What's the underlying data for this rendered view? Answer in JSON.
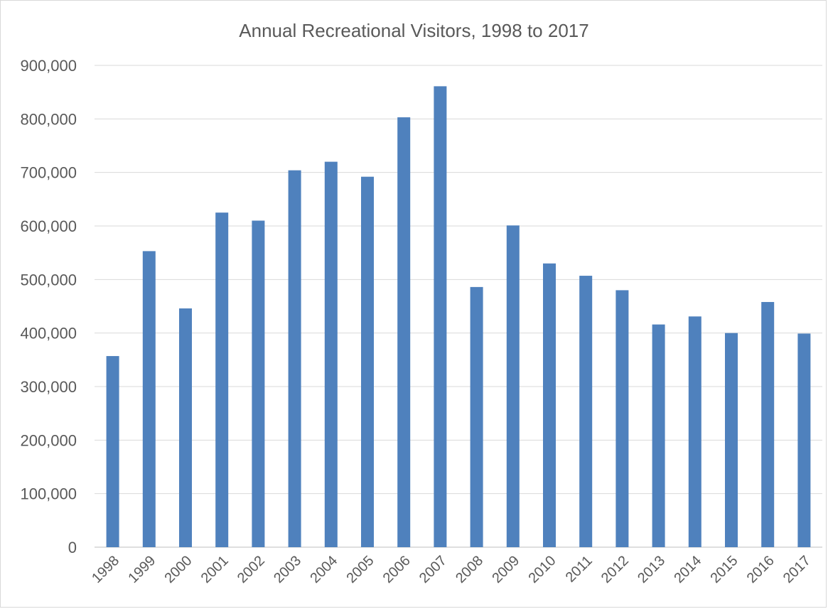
{
  "chart_data": {
    "type": "bar",
    "title": "Annual Recreational Visitors, 1998 to 2017",
    "xlabel": "",
    "ylabel": "",
    "categories": [
      "1998",
      "1999",
      "2000",
      "2001",
      "2002",
      "2003",
      "2004",
      "2005",
      "2006",
      "2007",
      "2008",
      "2009",
      "2010",
      "2011",
      "2012",
      "2013",
      "2014",
      "2015",
      "2016",
      "2017"
    ],
    "values": [
      357000,
      553000,
      446000,
      625000,
      610000,
      704000,
      720000,
      692000,
      803000,
      861000,
      486000,
      601000,
      530000,
      507000,
      480000,
      416000,
      431000,
      400000,
      458000,
      399000
    ],
    "ylim": [
      0,
      900000
    ],
    "yticks": [
      0,
      100000,
      200000,
      300000,
      400000,
      500000,
      600000,
      700000,
      800000,
      900000
    ],
    "ytick_labels": [
      "0",
      "100,000",
      "200,000",
      "300,000",
      "400,000",
      "500,000",
      "600,000",
      "700,000",
      "800,000",
      "900,000"
    ],
    "grid": true,
    "legend": "none",
    "bar_color": "#4f81bd",
    "grid_color": "#d9d9d9"
  }
}
